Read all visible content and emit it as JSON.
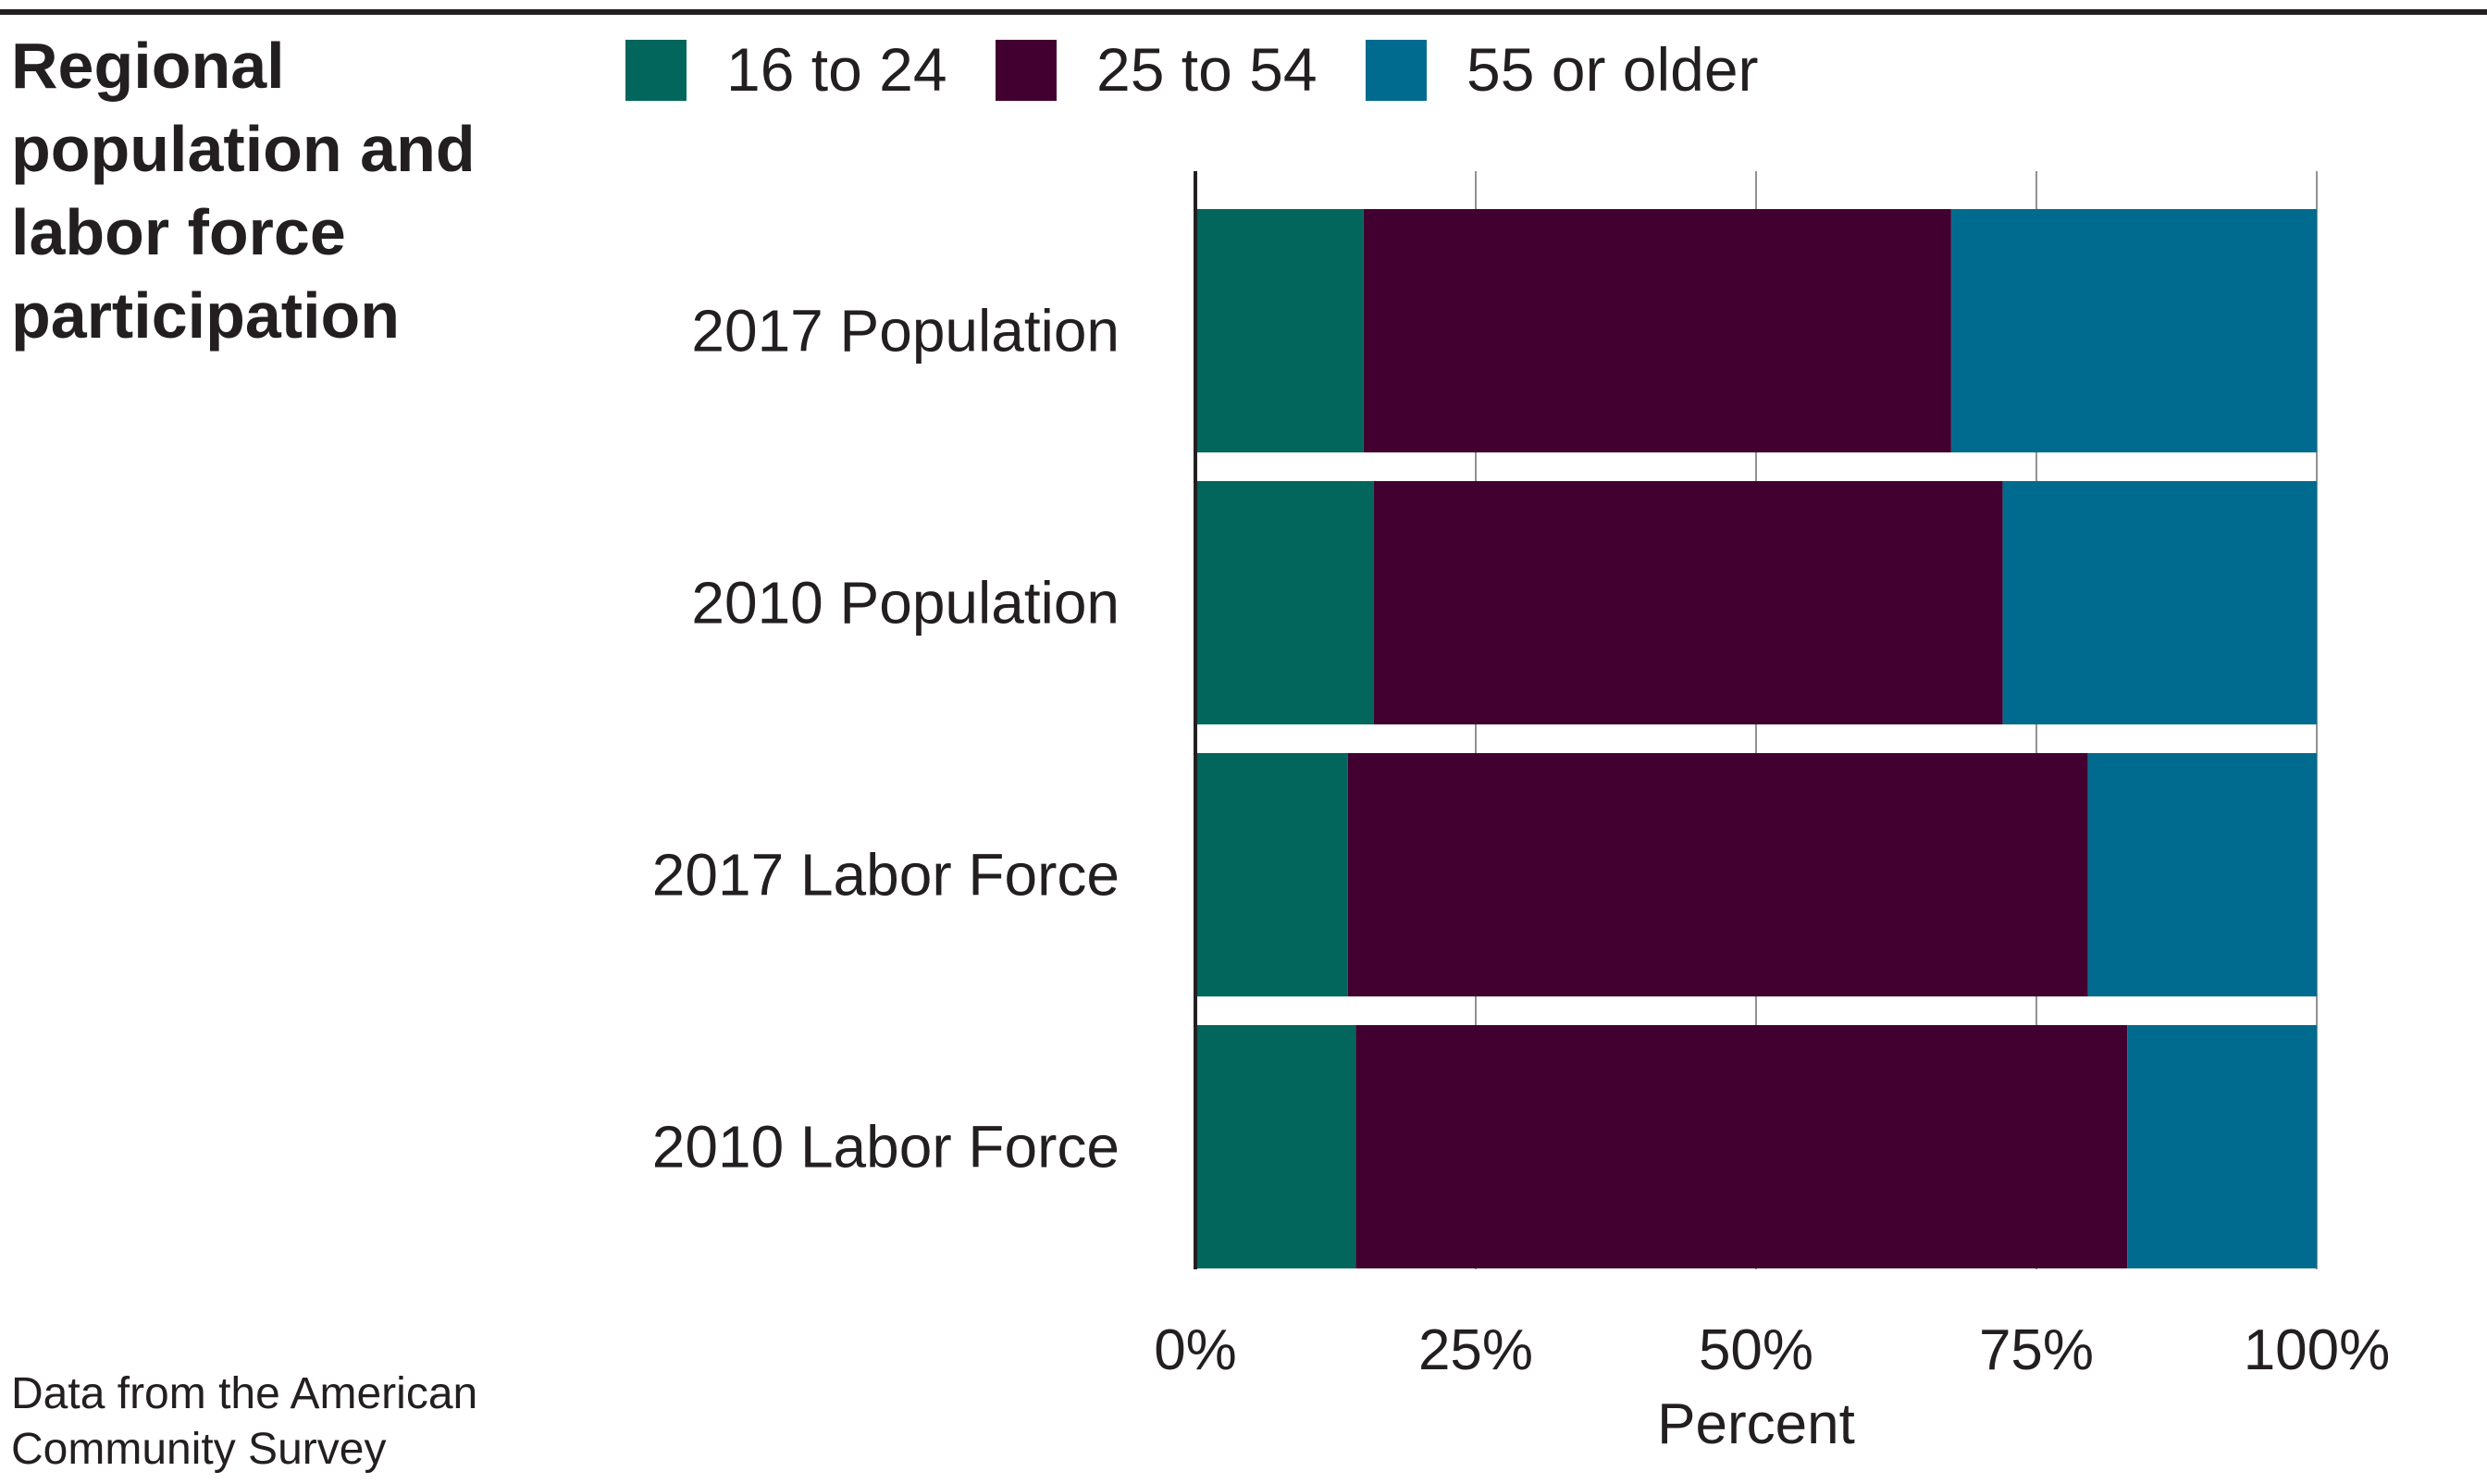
{
  "chart_data": {
    "type": "bar",
    "orientation": "horizontal",
    "stacked": true,
    "title": "Regional population and labor force participation",
    "title_lines": [
      "Regional",
      "population and",
      "labor force",
      "participation"
    ],
    "source_lines": [
      "Data from the American",
      "Community Survey"
    ],
    "categories": [
      "2017 Population",
      "2010 Population",
      "2017 Labor Force",
      "2010 Labor Force"
    ],
    "series": [
      {
        "name": "16 to 24",
        "color": "#02665c",
        "values": [
          15.0,
          15.9,
          13.6,
          14.3
        ]
      },
      {
        "name": "25 to 54",
        "color": "#420030",
        "values": [
          52.4,
          56.1,
          66.0,
          68.8
        ]
      },
      {
        "name": "55 or older",
        "color": "#006b8e",
        "values": [
          32.6,
          28.0,
          20.4,
          16.9
        ]
      }
    ],
    "xlabel": "Percent",
    "ylabel": "",
    "xlim": [
      0,
      100
    ],
    "x_ticks": [
      0,
      25,
      50,
      75,
      100
    ],
    "x_tick_labels": [
      "0%",
      "25%",
      "50%",
      "75%",
      "100%"
    ],
    "grid": true,
    "legend_position": "top"
  }
}
